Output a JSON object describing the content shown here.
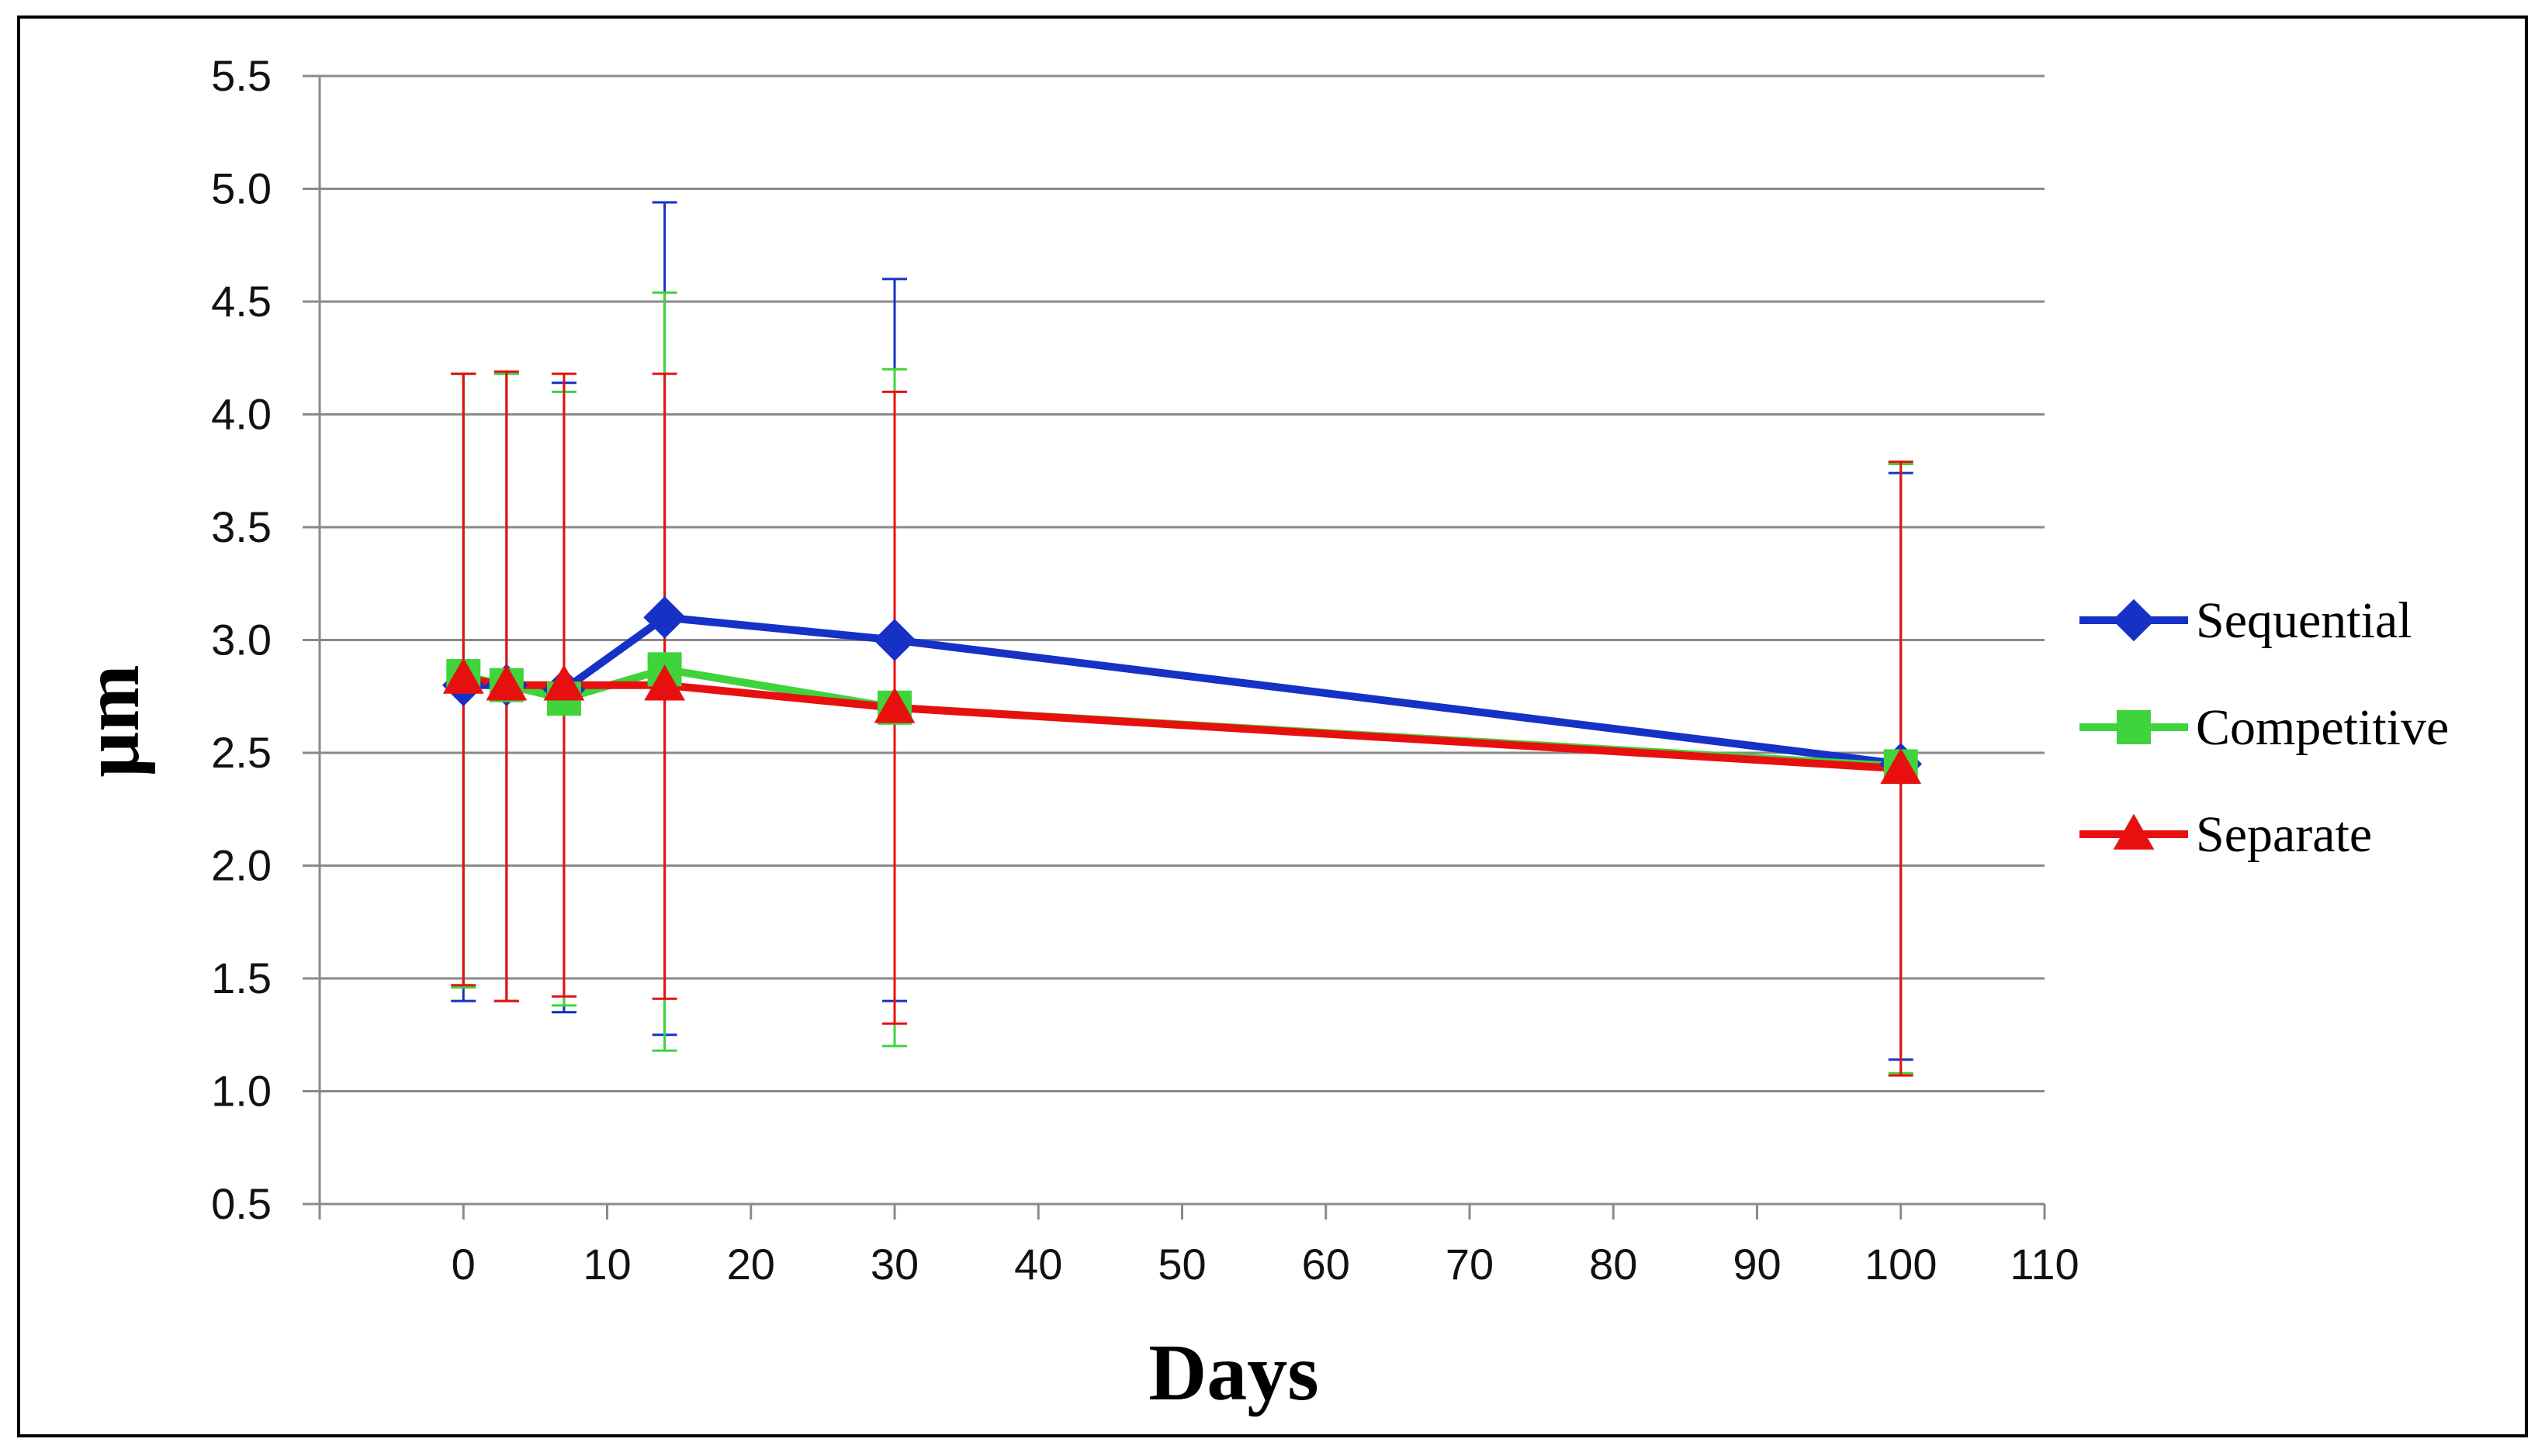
{
  "chart_data": {
    "type": "line",
    "title": "",
    "xlabel": "Days",
    "ylabel": "μm",
    "xlim": [
      -10,
      110
    ],
    "ylim": [
      0.5,
      5.5
    ],
    "grid": true,
    "legend_position": "right",
    "x_ticks": [
      0,
      10,
      20,
      30,
      40,
      50,
      60,
      70,
      80,
      90,
      100,
      110
    ],
    "x_tick_labels": [
      "0",
      "10",
      "20",
      "30",
      "40",
      "50",
      "60",
      "70",
      "80",
      "90",
      "100",
      "110"
    ],
    "y_ticks": [
      0.5,
      1.0,
      1.5,
      2.0,
      2.5,
      3.0,
      3.5,
      4.0,
      4.5,
      5.0,
      5.5
    ],
    "y_tick_labels": [
      "0.5",
      "1.0",
      "1.5",
      "2.0",
      "2.5",
      "3.0",
      "3.5",
      "4.0",
      "4.5",
      "5.0",
      "5.5"
    ],
    "series": [
      {
        "name": "Sequential",
        "color": "#1531c6",
        "marker": "diamond",
        "x": [
          0,
          3,
          7,
          14,
          30,
          100
        ],
        "values": [
          2.8,
          2.8,
          2.78,
          3.1,
          3.0,
          2.45
        ],
        "error_low": [
          1.4,
          1.4,
          1.35,
          1.25,
          1.4,
          1.14
        ],
        "error_high": [
          4.18,
          4.18,
          4.14,
          4.94,
          4.6,
          3.74
        ]
      },
      {
        "name": "Competitive",
        "color": "#3fd33c",
        "marker": "square",
        "x": [
          0,
          3,
          7,
          14,
          30,
          100
        ],
        "values": [
          2.84,
          2.8,
          2.74,
          2.87,
          2.7,
          2.44
        ],
        "error_low": [
          1.46,
          1.4,
          1.38,
          1.18,
          1.2,
          1.08
        ],
        "error_high": [
          4.18,
          4.18,
          4.1,
          4.54,
          4.2,
          3.78
        ]
      },
      {
        "name": "Separate",
        "color": "#e8100f",
        "marker": "triangle",
        "x": [
          0,
          3,
          7,
          14,
          30,
          100
        ],
        "values": [
          2.83,
          2.8,
          2.8,
          2.8,
          2.7,
          2.43
        ],
        "error_low": [
          1.47,
          1.4,
          1.42,
          1.41,
          1.3,
          1.07
        ],
        "error_high": [
          4.18,
          4.19,
          4.18,
          4.18,
          4.1,
          3.79
        ]
      }
    ]
  }
}
